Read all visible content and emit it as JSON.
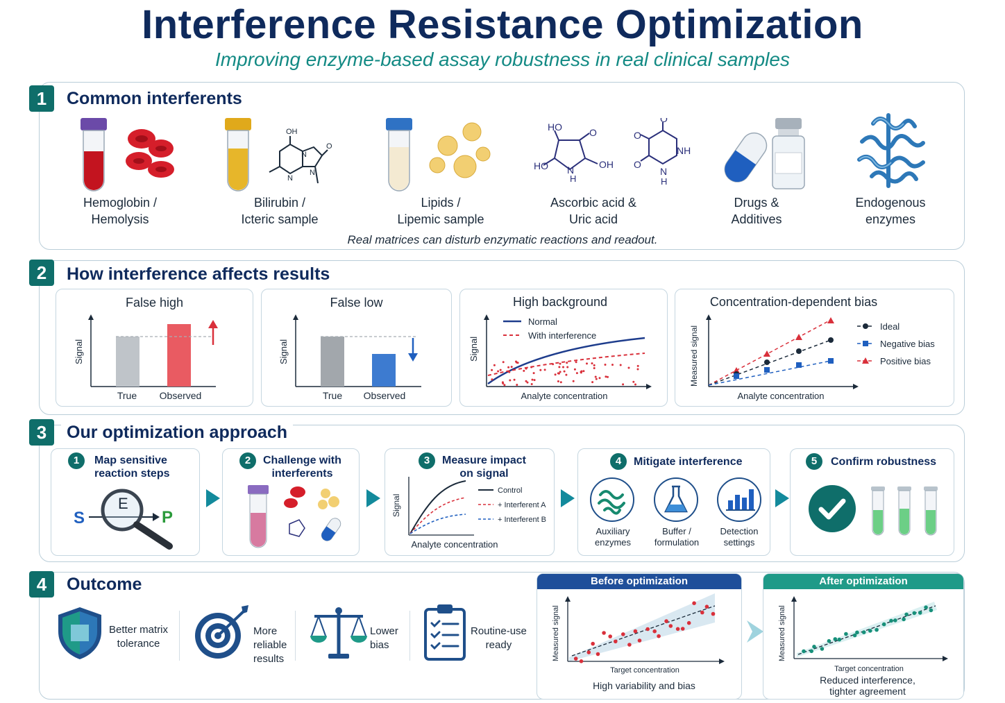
{
  "header": {
    "title": "Interference Resistance Optimization",
    "subtitle": "Improving enzyme-based assay robustness in real clinical samples"
  },
  "section1": {
    "number": "1",
    "title": "Common interferents",
    "items": [
      {
        "line1": "Hemoglobin /",
        "line2": "Hemolysis",
        "icon": "blood-tube-icon"
      },
      {
        "line1": "Bilirubin /",
        "line2": "Icteric sample",
        "icon": "bilirubin-tube-icon"
      },
      {
        "line1": "Lipids /",
        "line2": "Lipemic sample",
        "icon": "lipid-tube-icon"
      },
      {
        "line1": "Ascorbic acid &",
        "line2": "Uric acid",
        "icon": "molecule-icon"
      },
      {
        "line1": "Drugs &",
        "line2": "Additives",
        "icon": "capsule-icon"
      },
      {
        "line1": "Endogenous",
        "line2": "enzymes",
        "icon": "protein-icon"
      }
    ],
    "molecule_labels": {
      "oh": "OH",
      "o": "O",
      "n": "N",
      "h": "H",
      "ho": "HO",
      "nh": "NH"
    },
    "note": "Real matrices can disturb enzymatic reactions and readout."
  },
  "section2": {
    "number": "2",
    "title": "How interference affects results",
    "false_high": {
      "title": "False high",
      "ylabel": "Signal",
      "categories": [
        "True",
        "Observed"
      ],
      "values": [
        0.72,
        0.9
      ]
    },
    "false_low": {
      "title": "False low",
      "ylabel": "Signal",
      "categories": [
        "True",
        "Observed"
      ],
      "values": [
        0.72,
        0.47
      ]
    },
    "high_background": {
      "title": "High background",
      "ylabel": "Signal",
      "xlabel": "Analyte concentration",
      "legend": [
        "Normal",
        "With interference"
      ]
    },
    "conc_bias": {
      "title": "Concentration-dependent bias",
      "ylabel": "Measured signal",
      "xlabel": "Analyte concentration",
      "legend": [
        "Ideal",
        "Negative bias",
        "Positive bias"
      ]
    }
  },
  "section3": {
    "number": "3",
    "title": "Our optimization approach",
    "steps": [
      {
        "num": "1",
        "line1": "Map sensitive",
        "line2": "reaction steps"
      },
      {
        "num": "2",
        "line1": "Challenge with",
        "line2": "interferents"
      },
      {
        "num": "3",
        "line1": "Measure impact",
        "line2": "on signal"
      },
      {
        "num": "4",
        "line1": "Mitigate interference",
        "line2": ""
      },
      {
        "num": "5",
        "line1": "Confirm robustness",
        "line2": ""
      }
    ],
    "map_labels": {
      "s": "S",
      "e": "E",
      "p": "P"
    },
    "measure_chart": {
      "ylabel": "Signal",
      "xlabel": "Analyte concentration",
      "legend": [
        "Control",
        "+ Interferent A",
        "+ Interferent B"
      ]
    },
    "mitigations": [
      {
        "line1": "Auxiliary",
        "line2": "enzymes"
      },
      {
        "line1": "Buffer /",
        "line2": "formulation"
      },
      {
        "line1": "Detection",
        "line2": "settings"
      }
    ]
  },
  "section4": {
    "number": "4",
    "title": "Outcome",
    "outcomes": [
      {
        "line1": "Better matrix",
        "line2": "tolerance",
        "line3": ""
      },
      {
        "line1": "More",
        "line2": "reliable",
        "line3": "results"
      },
      {
        "line1": "Lower",
        "line2": "bias",
        "line3": ""
      },
      {
        "line1": "Routine-use",
        "line2": "ready",
        "line3": ""
      }
    ],
    "before": {
      "head": "Before optimization",
      "ylabel": "Measured signal",
      "xlabel": "Target concentration",
      "caption1": "High variability and bias",
      "caption2": ""
    },
    "after": {
      "head": "After optimization",
      "ylabel": "Measured signal",
      "xlabel": "Target concentration",
      "caption1": "Reduced interference,",
      "caption2": "tighter agreement"
    }
  },
  "colors": {
    "navy": "#0f2a5c",
    "teal": "#0f6e6a",
    "red": "#e0444f",
    "blue": "#1f5fbf"
  }
}
